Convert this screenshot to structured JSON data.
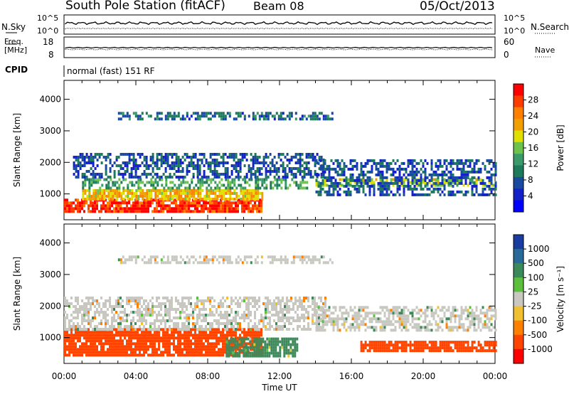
{
  "header": {
    "station": "South Pole Station (fitACF)",
    "beam": "Beam 08",
    "date": "05/Oct/2013"
  },
  "top_panels": {
    "nsky_label": "N.Sky",
    "nsearch_label": "N.Search",
    "nsky_ticks": [
      "10^5",
      "10^0"
    ],
    "nsky_right_ticks": [
      "10^5",
      "10^0"
    ],
    "freq_label_1": "Freq.",
    "freq_label_2": "[MHz]",
    "freq_ticks": [
      "18",
      "8"
    ],
    "nave_ticks": [
      "60",
      "0"
    ],
    "nave_label": "Nave",
    "cpid_label": "CPID",
    "cpid_value": "normal (fast) 151 RF"
  },
  "chart_data": [
    {
      "type": "heatmap",
      "panel": "power",
      "ylabel": "Slant Range [km]",
      "yticks": [
        1000,
        2000,
        3000,
        4000
      ],
      "ylim": [
        180,
        4600
      ],
      "xlim": [
        0,
        24
      ],
      "colorbar_label": "Power [dB]",
      "colorbar_ticks": [
        "28",
        "24",
        "20",
        "16",
        "12",
        "8",
        "4"
      ],
      "colorbar_colors": [
        "#ff0000",
        "#ff3c00",
        "#ff8000",
        "#f0a000",
        "#e0e000",
        "#6cc24a",
        "#3a9a6a",
        "#1e7a5a",
        "#1a4aa0",
        "#1420c8",
        "#0000ff"
      ],
      "bands": [
        {
          "t0": 0.0,
          "t1": 11.0,
          "r0": 450,
          "r1": 850,
          "level": 28
        },
        {
          "t0": 1.0,
          "t1": 11.0,
          "r0": 850,
          "r1": 1150,
          "level": 20
        },
        {
          "t0": 1.0,
          "t1": 13.5,
          "r0": 1200,
          "r1": 1500,
          "level": 12
        },
        {
          "t0": 0.5,
          "t1": 14.5,
          "r0": 1500,
          "r1": 2300,
          "level": 6
        },
        {
          "t0": 14.0,
          "t1": 24.0,
          "r0": 1300,
          "r1": 1500,
          "level": 16
        },
        {
          "t0": 14.0,
          "t1": 24.0,
          "r0": 1000,
          "r1": 2100,
          "level": 6
        },
        {
          "t0": 3.0,
          "t1": 15.0,
          "r0": 3400,
          "r1": 3600,
          "level": 8
        }
      ]
    },
    {
      "type": "heatmap",
      "panel": "velocity",
      "ylabel": "Slant Range [km]",
      "yticks": [
        1000,
        2000,
        3000,
        4000
      ],
      "ylim": [
        180,
        4600
      ],
      "xlim": [
        0,
        24
      ],
      "xlabel": "Time UT",
      "xticks": [
        "00:00",
        "04:00",
        "08:00",
        "12:00",
        "16:00",
        "20:00",
        "00:00"
      ],
      "colorbar_label": "Velocity [m s⁻¹]",
      "colorbar_ticks": [
        "1000",
        "500",
        "100",
        "25",
        "-25",
        "-100",
        "-500",
        "-1000"
      ],
      "colorbar_colors": [
        "#1a3ca0",
        "#2a6a9a",
        "#3c8a5a",
        "#5cc03c",
        "#c8c8c0",
        "#f0c030",
        "#ff8000",
        "#ff4400",
        "#ff0000"
      ],
      "bands": [
        {
          "t0": 0.0,
          "t1": 11.0,
          "r0": 450,
          "r1": 1300,
          "level": -500
        },
        {
          "t0": 9.0,
          "t1": 13.0,
          "r0": 450,
          "r1": 1000,
          "level": 100
        },
        {
          "t0": 0.0,
          "t1": 14.5,
          "r0": 1300,
          "r1": 2300,
          "level": 0
        },
        {
          "t0": 14.0,
          "t1": 24.0,
          "r0": 1200,
          "r1": 2000,
          "level": 0
        },
        {
          "t0": 16.5,
          "t1": 24.0,
          "r0": 600,
          "r1": 900,
          "level": -500
        },
        {
          "t0": 3.0,
          "t1": 15.0,
          "r0": 3400,
          "r1": 3600,
          "level": 0
        }
      ]
    }
  ]
}
